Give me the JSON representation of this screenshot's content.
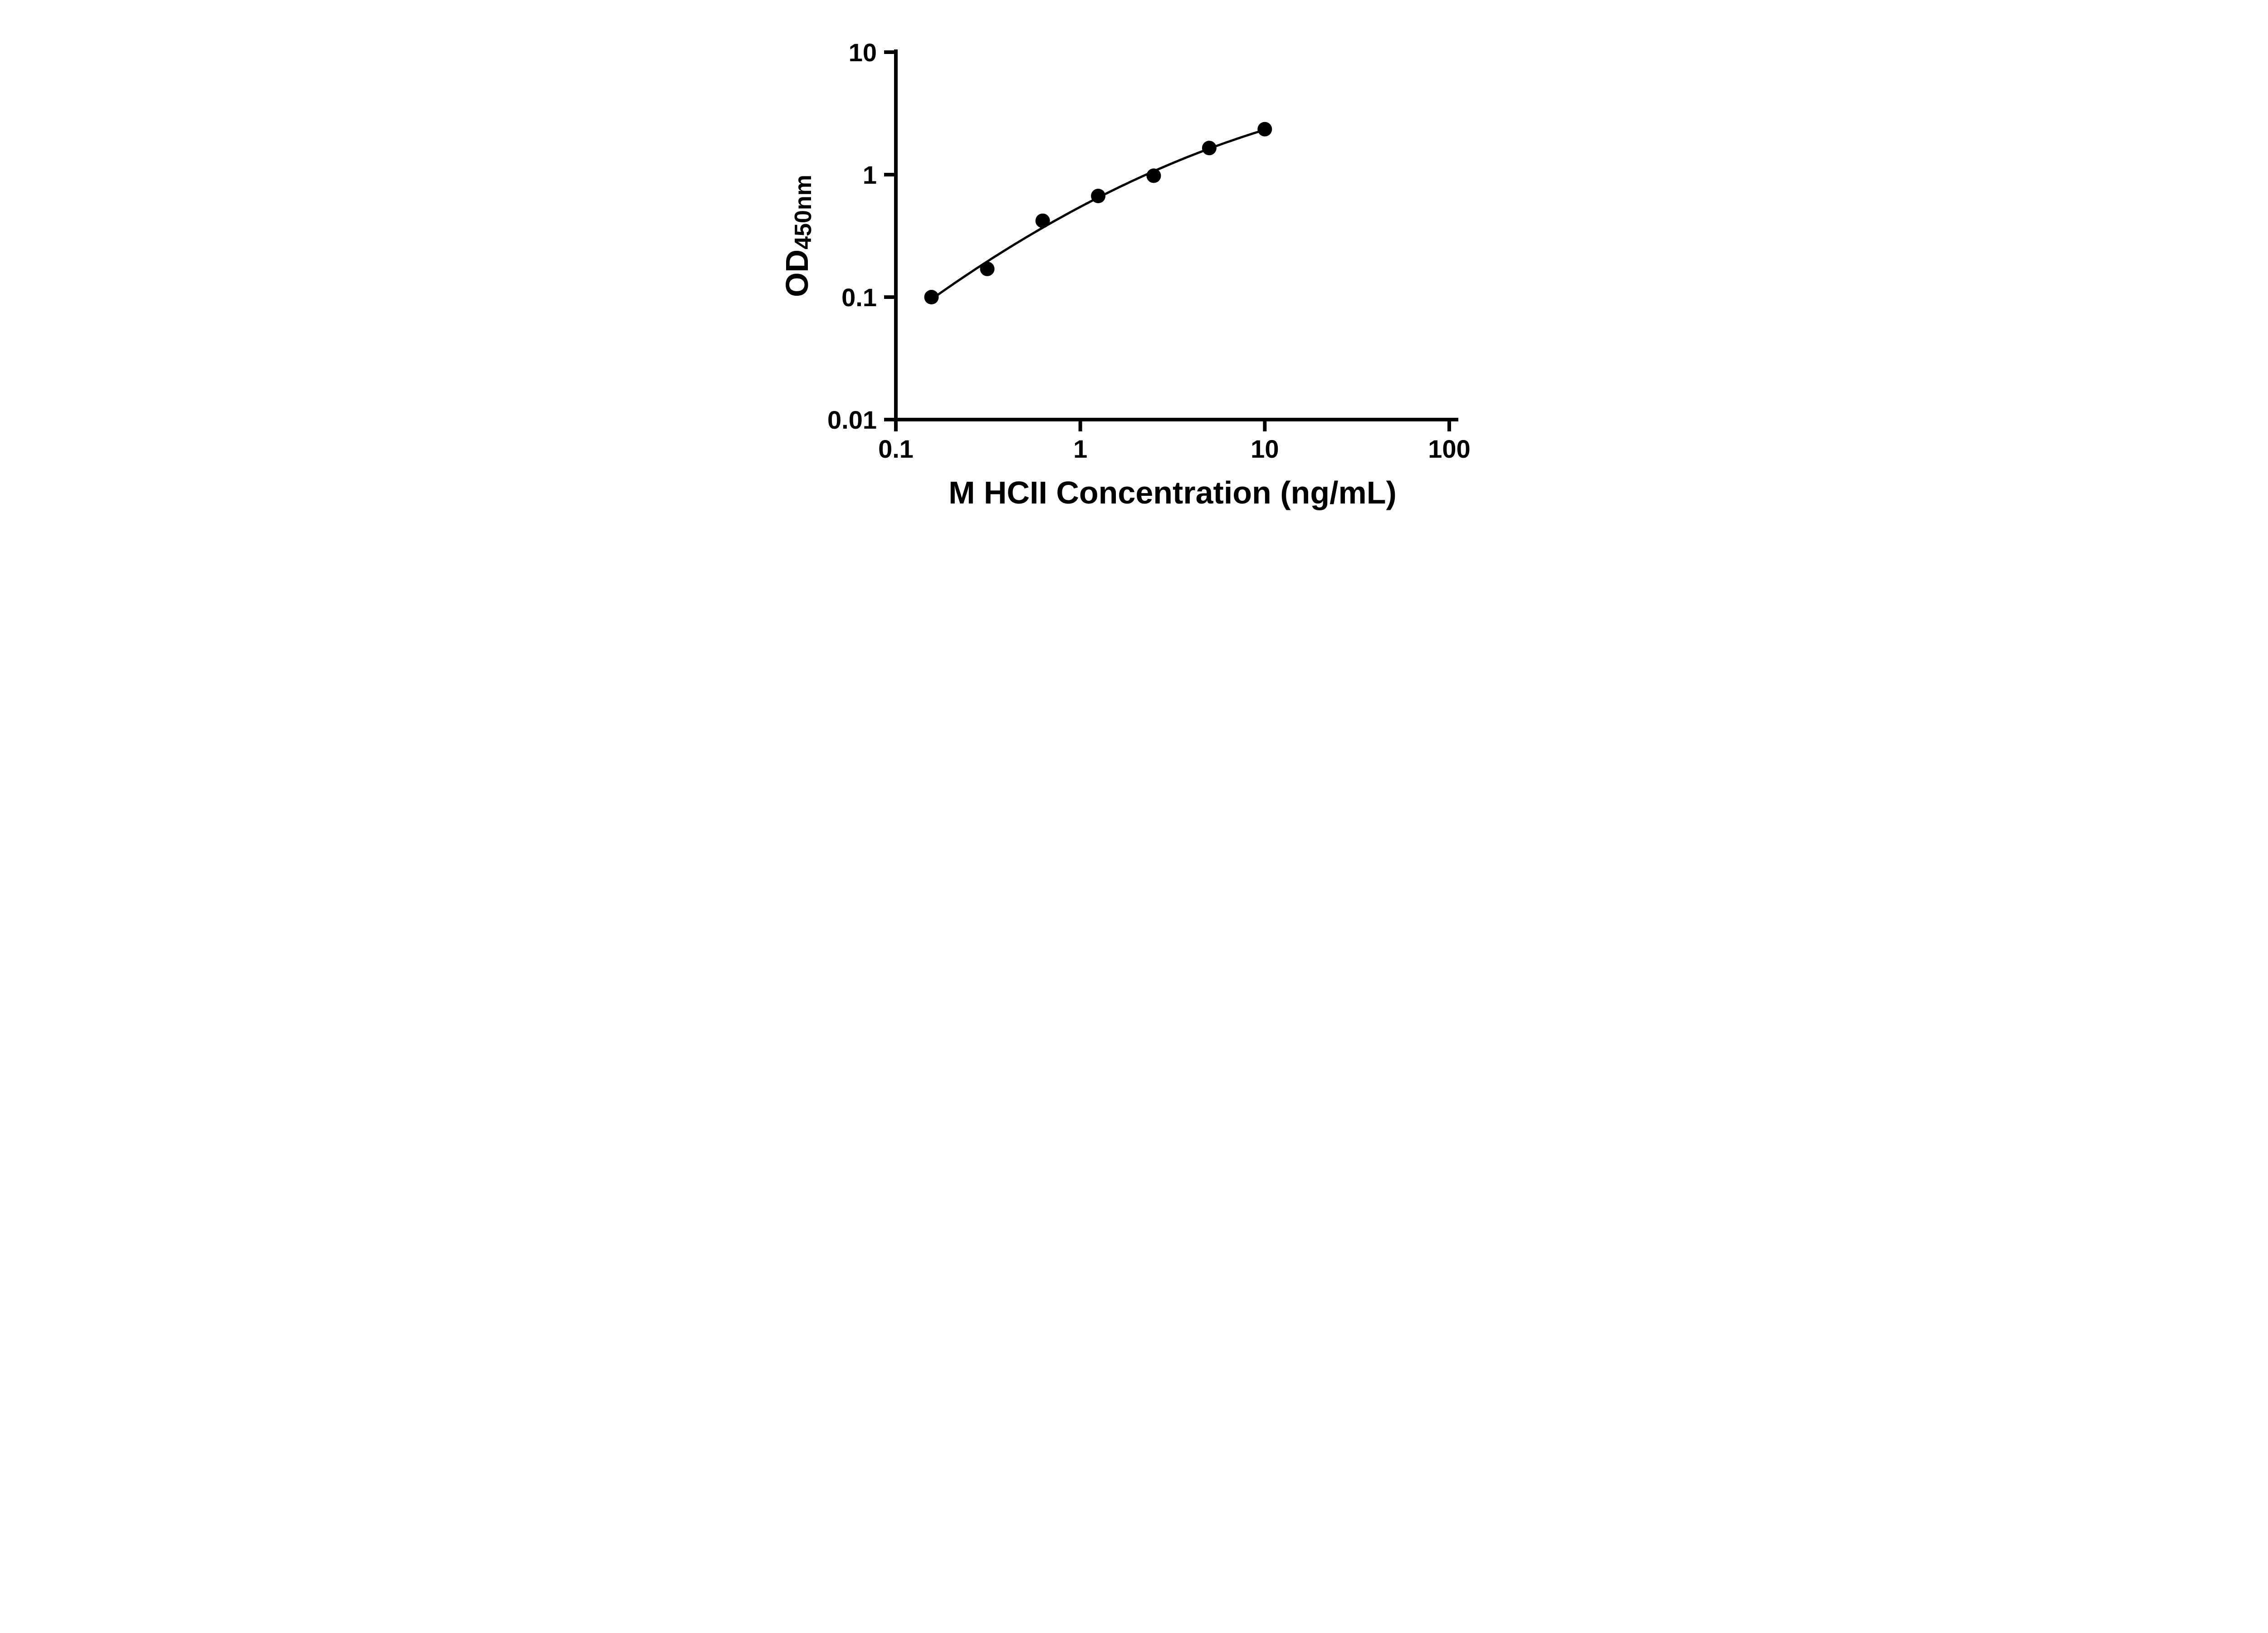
{
  "background": "#ffffff",
  "chart_data": {
    "type": "scatter",
    "title": "",
    "xlabel": "M HCII Concentration (ng/mL)",
    "ylabel": "OD450nm",
    "ylabel_main": "OD",
    "ylabel_sub": "450nm",
    "x_scale": "log",
    "y_scale": "log",
    "xlim": [
      0.1,
      100
    ],
    "ylim": [
      0.01,
      10
    ],
    "grid": false,
    "legend": "none",
    "x_ticks": [
      {
        "value": 0.1,
        "label": "0.1"
      },
      {
        "value": 1,
        "label": "1"
      },
      {
        "value": 10,
        "label": "10"
      },
      {
        "value": 100,
        "label": "100"
      }
    ],
    "y_ticks": [
      {
        "value": 0.01,
        "label": "0.01"
      },
      {
        "value": 0.1,
        "label": "0.1"
      },
      {
        "value": 1,
        "label": "1"
      },
      {
        "value": 10,
        "label": "10"
      }
    ],
    "points": [
      {
        "x": 0.156,
        "y": 0.1
      },
      {
        "x": 0.313,
        "y": 0.17
      },
      {
        "x": 0.625,
        "y": 0.42
      },
      {
        "x": 1.25,
        "y": 0.67
      },
      {
        "x": 2.5,
        "y": 0.98
      },
      {
        "x": 5,
        "y": 1.65
      },
      {
        "x": 10,
        "y": 2.35
      }
    ],
    "trendline": {
      "type": "quadratic_loglog",
      "coefficients": {
        "a": -0.169,
        "b": 0.7985,
        "c": -0.2632
      },
      "x_range": [
        0.156,
        10
      ]
    },
    "colors": {
      "points": "#000000",
      "curve": "#000000",
      "axis": "#000000",
      "background": "#ffffff"
    }
  }
}
